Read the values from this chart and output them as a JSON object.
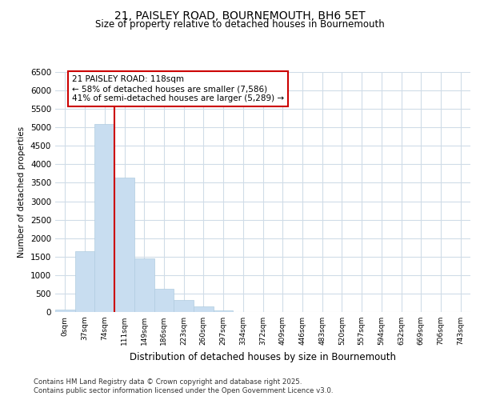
{
  "title_line1": "21, PAISLEY ROAD, BOURNEMOUTH, BH6 5ET",
  "title_line2": "Size of property relative to detached houses in Bournemouth",
  "xlabel": "Distribution of detached houses by size in Bournemouth",
  "ylabel": "Number of detached properties",
  "categories": [
    "0sqm",
    "37sqm",
    "74sqm",
    "111sqm",
    "149sqm",
    "186sqm",
    "223sqm",
    "260sqm",
    "297sqm",
    "334sqm",
    "372sqm",
    "409sqm",
    "446sqm",
    "483sqm",
    "520sqm",
    "557sqm",
    "594sqm",
    "632sqm",
    "669sqm",
    "706sqm",
    "743sqm"
  ],
  "values": [
    60,
    1650,
    5100,
    3650,
    1450,
    625,
    325,
    150,
    50,
    10,
    5,
    0,
    0,
    0,
    0,
    0,
    0,
    0,
    0,
    0,
    0
  ],
  "bar_color": "#c8ddf0",
  "bar_edge_color": "#b0cce0",
  "vline_x": 2.5,
  "vline_color": "#cc0000",
  "annotation_text": "21 PAISLEY ROAD: 118sqm\n← 58% of detached houses are smaller (7,586)\n41% of semi-detached houses are larger (5,289) →",
  "annotation_box_color": "#ffffff",
  "annotation_box_edge": "#cc0000",
  "ylim": [
    0,
    6500
  ],
  "yticks": [
    0,
    500,
    1000,
    1500,
    2000,
    2500,
    3000,
    3500,
    4000,
    4500,
    5000,
    5500,
    6000,
    6500
  ],
  "footer_line1": "Contains HM Land Registry data © Crown copyright and database right 2025.",
  "footer_line2": "Contains public sector information licensed under the Open Government Licence v3.0.",
  "bg_color": "#ffffff",
  "plot_bg_color": "#ffffff",
  "grid_color": "#d0dce8"
}
